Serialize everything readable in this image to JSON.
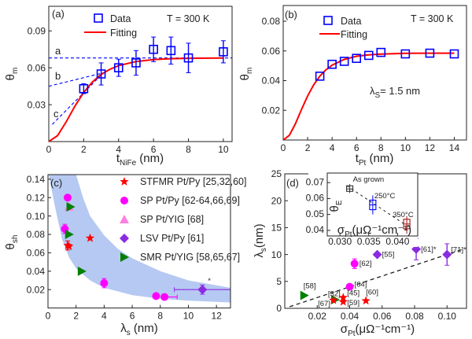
{
  "chart_data": [
    {
      "panel": "(a)",
      "type": "scatter",
      "xlabel": {
        "main": "t",
        "sub": "NiFe",
        "unit": " (nm)"
      },
      "ylabel": {
        "main": "θ",
        "sub": "m"
      },
      "xlim": [
        0,
        10.5
      ],
      "ylim": [
        0,
        0.11
      ],
      "xticks": [
        0,
        2,
        4,
        6,
        8,
        10
      ],
      "xtick_labels": [
        "0",
        "2",
        "4",
        "6",
        "8",
        "10"
      ],
      "yticks": [
        0.03,
        0.06,
        0.09
      ],
      "ytick_labels": [
        "0.03",
        "0.06",
        "0.09"
      ],
      "annotation": "T = 300 K",
      "legend": [
        "Data",
        "Fitting"
      ],
      "series": [
        {
          "name": "Data",
          "marker": "open-square",
          "color": "#0000ff",
          "x": [
            2,
            3,
            4,
            5,
            6,
            7,
            8,
            10
          ],
          "y": [
            0.043,
            0.055,
            0.06,
            0.064,
            0.075,
            0.074,
            0.068,
            0.073
          ],
          "yerr": [
            0.004,
            0.009,
            0.007,
            0.01,
            0.01,
            0.011,
            0.012,
            0.009
          ]
        },
        {
          "name": "Fitting",
          "kind": "line",
          "color": "#ff0000",
          "x": [
            0,
            0.5,
            1,
            1.5,
            2,
            2.5,
            3,
            3.5,
            4,
            5,
            6,
            7,
            8,
            10
          ],
          "y": [
            0,
            0.0048,
            0.0161,
            0.0289,
            0.04,
            0.0485,
            0.0546,
            0.0588,
            0.0618,
            0.0651,
            0.0667,
            0.0674,
            0.0677,
            0.068
          ]
        }
      ],
      "guide_lines": [
        {
          "label": "a",
          "color": "#0000ff",
          "x": [
            0,
            10.5
          ],
          "y": [
            0.068,
            0.068
          ]
        },
        {
          "label": "b",
          "color": "#0000ff",
          "x": [
            0,
            3.3
          ],
          "y": [
            0.045,
            0.0565
          ]
        },
        {
          "label": "c",
          "color": "#0000ff",
          "x": [
            0.2,
            3.0
          ],
          "y": [
            0.014,
            0.054
          ]
        }
      ]
    },
    {
      "panel": "(b)",
      "type": "scatter",
      "xlabel": {
        "main": "t",
        "sub": "Pt",
        "unit": " (nm)"
      },
      "ylabel": {
        "main": "θ",
        "sub": "m"
      },
      "xlim": [
        0,
        15
      ],
      "ylim": [
        0,
        0.0906
      ],
      "xticks": [
        0,
        2,
        4,
        6,
        8,
        10,
        12,
        14
      ],
      "xtick_labels": [
        "0",
        "2",
        "4",
        "6",
        "8",
        "10",
        "12",
        "14"
      ],
      "yticks": [
        0.02,
        0.04,
        0.06,
        0.08
      ],
      "ytick_labels": [
        "0.02",
        "0.04",
        "0.06",
        "0.08"
      ],
      "annotation": "T = 300 K",
      "annotation2": {
        "main": "λ",
        "sub": "S",
        "rest": "= 1.5 nm"
      },
      "legend": [
        "Data",
        "Fitting"
      ],
      "series": [
        {
          "name": "Data",
          "marker": "open-square",
          "color": "#0000ff",
          "x": [
            3,
            4,
            5,
            6,
            7,
            8,
            10,
            12,
            14
          ],
          "y": [
            0.043,
            0.051,
            0.053,
            0.055,
            0.057,
            0.059,
            0.058,
            0.0585,
            0.058
          ]
        },
        {
          "name": "Fitting",
          "kind": "line",
          "color": "#ff0000",
          "x": [
            0,
            0.5,
            1,
            1.5,
            2,
            2.5,
            3,
            3.5,
            4,
            5,
            6,
            7,
            8,
            10,
            12,
            14
          ],
          "y": [
            0,
            0.0031,
            0.0109,
            0.0206,
            0.0297,
            0.0372,
            0.043,
            0.0473,
            0.0504,
            0.0543,
            0.0564,
            0.0574,
            0.0579,
            0.0584,
            0.0585,
            0.0585
          ]
        }
      ]
    },
    {
      "panel": "(c)",
      "type": "scatter",
      "xlabel": {
        "main": "λ",
        "sub": "s",
        "unit": " (nm)"
      },
      "ylabel": {
        "main": "θ",
        "sub": "sh"
      },
      "xlim": [
        0,
        13
      ],
      "ylim": [
        0,
        0.145
      ],
      "xticks": [
        0,
        2,
        4,
        6,
        8,
        10,
        12
      ],
      "xtick_labels": [
        "0",
        "2",
        "4",
        "6",
        "8",
        "10",
        "12"
      ],
      "yticks": [
        0.02,
        0.04,
        0.06,
        0.08,
        0.1,
        0.12,
        0.14
      ],
      "ytick_labels": [
        "0.02",
        "0.04",
        "0.06",
        "0.08",
        "0.10",
        "0.12",
        "0.14"
      ],
      "band": {
        "color": "#a9bff0",
        "upper": {
          "x": [
            0.05,
            2.0,
            2.5,
            3,
            4,
            5,
            6,
            8,
            10,
            13
          ],
          "y": [
            0.145,
            0.145,
            0.12,
            0.1,
            0.079,
            0.064,
            0.054,
            0.04,
            0.03,
            0.022
          ]
        },
        "lower": {
          "x": [
            0.05,
            0.5,
            1,
            1.5,
            2,
            3,
            4,
            6,
            8,
            10,
            13
          ],
          "y": [
            0.145,
            0.11,
            0.075,
            0.055,
            0.043,
            0.03,
            0.022,
            0.014,
            0.01,
            0.008,
            0.006
          ]
        }
      },
      "series": [
        {
          "name": "STFMR Pt/Py [25,32,60]",
          "marker": "star",
          "color": "#ff0000",
          "x": [
            1.4,
            1.5,
            3.0
          ],
          "y": [
            0.068,
            0.067,
            0.076
          ],
          "yerr": [
            0.005,
            0,
            0
          ]
        },
        {
          "name": "SP Pt/Py [62-64,66,69]",
          "marker": "circle",
          "color": "#ff00ff",
          "x": [
            1.4,
            1.2,
            4.0,
            7.7,
            8.3
          ],
          "y": [
            0.12,
            0.086,
            0.027,
            0.013,
            0.012
          ],
          "yerr": [
            0,
            0.005,
            0.005,
            0,
            0
          ],
          "xerr_hi": [
            0,
            0,
            0,
            0,
            0.9
          ]
        },
        {
          "name": "SP Pt/YIG [68]",
          "marker": "triangle-up",
          "color": "#ff80e0",
          "x": [
            1.5
          ],
          "y": [
            0.11
          ]
        },
        {
          "name": "LSV Pt/Py [61]",
          "marker": "diamond",
          "color": "#8a2be2",
          "x": [
            11
          ],
          "y": [
            0.02
          ],
          "yerr": [
            0.005
          ],
          "xerr": [
            2
          ],
          "star_note": "*"
        },
        {
          "name": "SMR Pt/YIG [58,65,67]",
          "marker": "triangle-right",
          "color": "#008000",
          "x": [
            1.5,
            2.4,
            1.6
          ],
          "y": [
            0.08,
            0.04,
            0.11
          ]
        }
      ]
    },
    {
      "panel": "(d)",
      "type": "scatter",
      "xlabel": {
        "main": "σ",
        "sub": "Pt",
        "unit": "(μΩ⁻¹cm⁻¹)"
      },
      "ylabel": {
        "main": "λ",
        "sub": "s",
        "unit": "(nm)"
      },
      "xlim": [
        0,
        0.112
      ],
      "ylim": [
        0,
        25
      ],
      "xticks": [
        0.02,
        0.04,
        0.06,
        0.08,
        0.1
      ],
      "xtick_labels": [
        "0.02",
        "0.04",
        "0.06",
        "0.08",
        "0.10"
      ],
      "yticks": [
        0,
        5,
        10,
        15,
        20,
        25
      ],
      "ytick_labels": [
        "0",
        "5",
        "10",
        "15",
        "20",
        "25"
      ],
      "trend_line": {
        "x": [
          0.003,
          0.11
        ],
        "y": [
          0.3,
          11
        ]
      },
      "points": [
        {
          "label": "[58]",
          "marker": "triangle-right",
          "color": "#008000",
          "x": 0.012,
          "y": 2.4
        },
        {
          "label": "[67]",
          "marker": "triangle-right",
          "color": "#008000",
          "x": 0.031,
          "y": 1.6
        },
        {
          "label": "[32]",
          "marker": "star",
          "color": "#ff0000",
          "x": 0.03,
          "y": 1.5
        },
        {
          "label": "[45]",
          "marker": "star",
          "color": "#ff0000",
          "x": 0.036,
          "y": 2.0
        },
        {
          "label": "[59]",
          "marker": "star",
          "color": "#ff0000",
          "x": 0.036,
          "y": 1.2
        },
        {
          "label": "[60]",
          "marker": "star",
          "color": "#ff0000",
          "x": 0.05,
          "y": 1.4
        },
        {
          "label": "[64]",
          "marker": "circle",
          "color": "#ff00ff",
          "x": 0.04,
          "y": 4.0
        },
        {
          "label": "[62]",
          "marker": "circle",
          "color": "#ff00ff",
          "x": 0.043,
          "y": 8.3,
          "yerr": 0.9
        },
        {
          "label": "[55]",
          "marker": "diamond",
          "color": "#8a2be2",
          "x": 0.057,
          "y": 10
        },
        {
          "label": "[61]*",
          "marker": "diamond",
          "color": "#8a2be2",
          "x": 0.081,
          "y": 11,
          "yerr": 2
        },
        {
          "label": "[71]*",
          "marker": "diamond",
          "color": "#8a2be2",
          "x": 0.1,
          "y": 10,
          "yerr": 2
        }
      ],
      "inset": {
        "type": "box",
        "xlabel": {
          "main": "σ",
          "sub": "Pt",
          "unit": "(μΩ⁻¹cm⁻¹)"
        },
        "ylabel": {
          "main": "θ",
          "sub": "E"
        },
        "xlim": [
          0.0278,
          0.0435
        ],
        "ylim": [
          0.0365,
          0.076
        ],
        "xticks": [
          0.03,
          0.035,
          0.04
        ],
        "xtick_labels": [
          "0.030",
          "0.035",
          "0.040"
        ],
        "yticks": [
          0.04,
          0.05,
          0.06,
          0.07
        ],
        "ytick_labels": [
          "0.04",
          "0.05",
          "0.06",
          "0.07"
        ],
        "trend_line": {
          "x": [
            0.0312,
            0.042
          ],
          "y": [
            0.068,
            0.042
          ]
        },
        "boxes": [
          {
            "label": "As grown",
            "color": "#333333",
            "x": 0.0317,
            "median": 0.066,
            "q1": 0.0645,
            "q3": 0.068,
            "min": 0.0635,
            "max": 0.069
          },
          {
            "label": "250°C",
            "color": "#0000ff",
            "x": 0.0357,
            "median": 0.056,
            "q1": 0.053,
            "q3": 0.059,
            "min": 0.05,
            "max": 0.062
          },
          {
            "label": "350°C",
            "color": "#a01010",
            "x": 0.0416,
            "median": 0.044,
            "q1": 0.041,
            "q3": 0.047,
            "min": 0.038,
            "max": 0.049
          }
        ]
      }
    }
  ]
}
